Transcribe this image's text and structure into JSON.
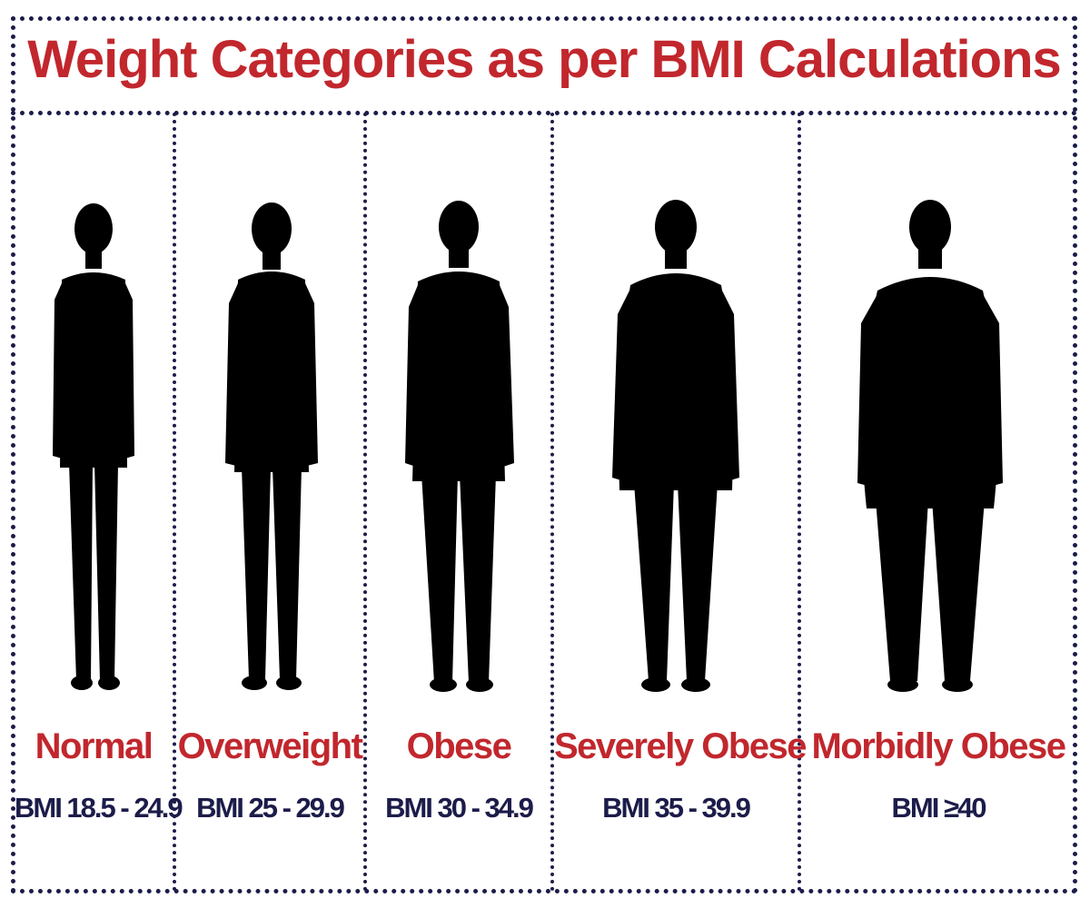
{
  "title": "Weight Categories as per BMI Calculations",
  "colors": {
    "label": "#c1272d",
    "bmi_text": "#1c1c4a",
    "border": "#1c1c4a",
    "silhouette": "#000000"
  },
  "categories": [
    {
      "name": "Normal",
      "bmi": "BMI 18.5 - 24.9",
      "icon": "slim-person-silhouette"
    },
    {
      "name": "Overweight",
      "bmi": "BMI 25 - 29.9",
      "icon": "overweight-person-silhouette"
    },
    {
      "name": "Obese",
      "bmi": "BMI 30 - 34.9",
      "icon": "obese-person-silhouette"
    },
    {
      "name": "Severely Obese",
      "bmi": "BMI 35 - 39.9",
      "icon": "severely-obese-person-silhouette"
    },
    {
      "name": "Morbidly Obese",
      "bmi": "BMI ≥40",
      "icon": "morbidly-obese-person-silhouette"
    }
  ]
}
